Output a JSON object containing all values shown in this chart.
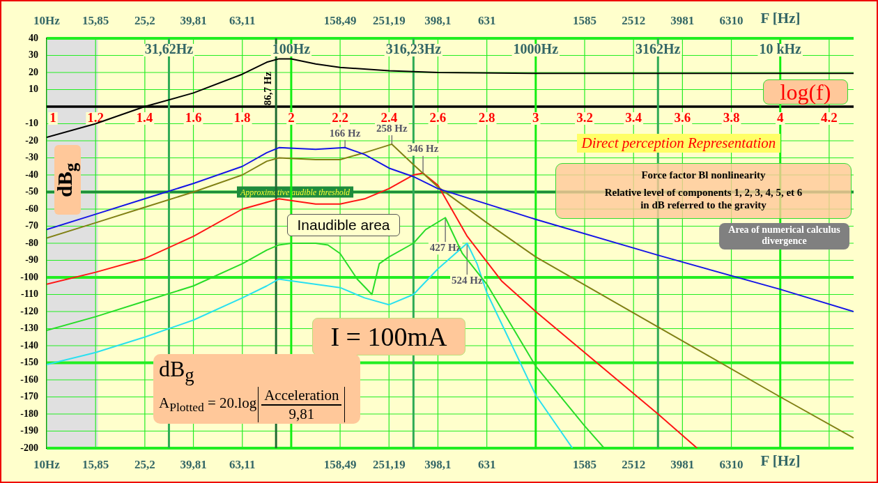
{
  "chart_data": {
    "type": "line",
    "ylabel": "dB$_{g}$",
    "xlabel": "F [Hz]",
    "marker": "none",
    "grid": true,
    "log": "x",
    "xlim": [
      10,
      19953
    ],
    "ylim": [
      -200,
      40
    ],
    "xticks": [
      {
        "value": 10,
        "label": "10Hz"
      },
      {
        "value": 15.85,
        "label": "15,85"
      },
      {
        "value": 25.2,
        "label": "25,2"
      },
      {
        "value": 39.81,
        "label": "39,81"
      },
      {
        "value": 63.11,
        "label": "63,11"
      },
      {
        "value": 158.49,
        "label": "158,49"
      },
      {
        "value": 251.19,
        "label": "251,19"
      },
      {
        "value": 398.1,
        "label": "398,1"
      },
      {
        "value": 631,
        "label": "631"
      },
      {
        "value": 1585,
        "label": "1585"
      },
      {
        "value": 2512,
        "label": "2512"
      },
      {
        "value": 3981,
        "label": "3981"
      },
      {
        "value": 6310,
        "label": "6310"
      },
      {
        "value": 15849,
        "label": null
      }
    ],
    "yticks": [
      -200,
      -190,
      -180,
      -170,
      -160,
      -150,
      -140,
      -130,
      -120,
      -110,
      -100,
      -90,
      -80,
      -70,
      -60,
      -50,
      -40,
      -30,
      -20,
      -10,
      10,
      20,
      30,
      40
    ],
    "series": [
      {
        "color": "#000000",
        "x": [
          10,
          15.85,
          25.12,
          39.81,
          63.1,
          79.4,
          89.1,
          100,
          125.9,
          158.5,
          251.2,
          398.1,
          1000,
          3162,
          10000,
          19953
        ],
        "values": [
          -18,
          -10,
          0,
          8,
          19,
          26,
          28,
          28,
          25,
          23,
          21,
          20,
          19.5,
          19.5,
          19.5,
          19.5
        ]
      },
      {
        "color": "#1414e6",
        "x": [
          10,
          15.85,
          25.12,
          39.81,
          63.1,
          79.4,
          89.1,
          125.9,
          166,
          199.5,
          251.2,
          316.2,
          398.1,
          631,
          1000,
          3162,
          10000,
          19953
        ],
        "values": [
          -72,
          -63,
          -54,
          -45,
          -35,
          -27,
          -24,
          -25,
          -24,
          -28,
          -36,
          -41,
          -48,
          -57,
          -66,
          -87,
          -107,
          -120
        ]
      },
      {
        "color": "#808014",
        "x": [
          10,
          15.85,
          25.12,
          39.81,
          63.1,
          79.4,
          89.1,
          125.9,
          158.5,
          199.5,
          258,
          316.2,
          398.1,
          631,
          1000,
          3162,
          10000,
          19953
        ],
        "values": [
          -77,
          -68,
          -59,
          -50,
          -40,
          -32,
          -30,
          -31,
          -31,
          -27,
          -22,
          -34,
          -47,
          -68,
          -88,
          -129,
          -170,
          -194
        ]
      },
      {
        "color": "#ff1414",
        "x": [
          10,
          15.85,
          25.12,
          39.81,
          63.1,
          79.4,
          89.1,
          125.9,
          158.5,
          199.5,
          251.2,
          316.2,
          346,
          398.1,
          524.8,
          724.4,
          1000,
          3162,
          4571
        ],
        "values": [
          -104,
          -97,
          -89,
          -76,
          -60,
          -56,
          -54,
          -57,
          -57,
          -54,
          -48,
          -40,
          -39,
          -46,
          -76,
          -102,
          -120,
          -180,
          -200
        ]
      },
      {
        "color": "#28dc28",
        "x": [
          10,
          15.85,
          25.12,
          39.81,
          63.1,
          79.4,
          89.1,
          100,
          125.9,
          141.3,
          158.5,
          186.2,
          213.8,
          229.1,
          251.2,
          316.2,
          354.8,
          427,
          501.2,
          631,
          1000,
          1585,
          1905
        ],
        "values": [
          -131,
          -123,
          -114,
          -105,
          -92,
          -84,
          -81,
          -80,
          -80,
          -81,
          -86,
          -101,
          -110,
          -92,
          -88,
          -80,
          -72,
          -65,
          -86,
          -104,
          -152,
          -187,
          -200
        ]
      },
      {
        "color": "#28e0f0",
        "x": [
          10,
          15.85,
          25.12,
          39.81,
          63.1,
          79.4,
          89.1,
          100,
          158.5,
          199.5,
          251.2,
          316.2,
          398.1,
          524,
          575.4,
          631,
          1000,
          1413
        ],
        "values": [
          -151,
          -144,
          -135,
          -125,
          -112,
          -105,
          -101,
          -102,
          -106,
          -112,
          -116,
          -110,
          -95,
          -80,
          -92,
          -109,
          -169,
          -200
        ]
      }
    ],
    "bands": [
      {
        "axis": "x",
        "from": 10,
        "to": 16.2,
        "color": "#e0e0e0"
      }
    ],
    "ref_lines": [
      {
        "axis": "y",
        "value": 0,
        "color": "#000000"
      },
      {
        "axis": "y",
        "value": -50,
        "label": "Approximative audible threshold",
        "color": "#1e8c3c"
      },
      {
        "axis": "x",
        "value": 86.7,
        "label": "86,7 Hz",
        "color": "#1e6b33"
      },
      {
        "axis": "x",
        "value": 31.62,
        "label": "31,62Hz",
        "color": "#2eaa55"
      },
      {
        "axis": "x",
        "value": 100,
        "label": "100Hz",
        "color": "#11ee11"
      },
      {
        "axis": "x",
        "value": 316.23,
        "label": "316,23Hz",
        "color": "#2eaa55"
      },
      {
        "axis": "x",
        "value": 1000,
        "label": "1000Hz",
        "color": "#11ee11"
      },
      {
        "axis": "x",
        "value": 3162,
        "label": "3162Hz",
        "color": "#2eaa55"
      },
      {
        "axis": "x",
        "value": 10000,
        "label": "10 kHz",
        "color": "#11ee11"
      }
    ],
    "annotations": [
      "log(f)",
      "Direct perception Representation",
      "Force factor Bl nonlinearity",
      "Relative level of components 1, 2, 3, 4, 5, et 6",
      "in dB referred to the gravity",
      "Inaudible area",
      "I = 100mA",
      "dB$_{g}$",
      "A$_{Plotted}$ = 20.log",
      "Acceleration",
      "9,81",
      "Area of numerical calculus divergence",
      {
        "text": "1",
        "x": 10,
        "y": 0
      },
      {
        "text": "1.2",
        "x": 15.85,
        "y": 0
      },
      {
        "text": "1.4",
        "x": 25.12,
        "y": 0
      },
      {
        "text": "1.6",
        "x": 39.81,
        "y": 0
      },
      {
        "text": "1.8",
        "x": 63.1,
        "y": 0
      },
      {
        "text": "2",
        "x": 100,
        "y": 0
      },
      {
        "text": "2.2",
        "x": 158.5,
        "y": 0
      },
      {
        "text": "2.4",
        "x": 251.2,
        "y": 0
      },
      {
        "text": "2.6",
        "x": 398.1,
        "y": 0
      },
      {
        "text": "2.8",
        "x": 631,
        "y": 0
      },
      {
        "text": "3",
        "x": 1000,
        "y": 0
      },
      {
        "text": "3.2",
        "x": 1585,
        "y": 0
      },
      {
        "text": "3.4",
        "x": 2512,
        "y": 0
      },
      {
        "text": "3.6",
        "x": 3981,
        "y": 0
      },
      {
        "text": "3.8",
        "x": 6310,
        "y": 0
      },
      {
        "text": "4",
        "x": 10000,
        "y": 0
      },
      {
        "text": "4.2",
        "x": 15849,
        "y": 0
      },
      {
        "text": "166 Hz",
        "x": 166,
        "y": -24
      },
      {
        "text": "258 Hz",
        "x": 258,
        "y": -22
      },
      {
        "text": "346 Hz",
        "x": 346,
        "y": -39
      },
      {
        "text": "427 Hz",
        "x": 427,
        "y": -65
      },
      {
        "text": "524 Hz",
        "x": 524,
        "y": -80
      }
    ]
  }
}
